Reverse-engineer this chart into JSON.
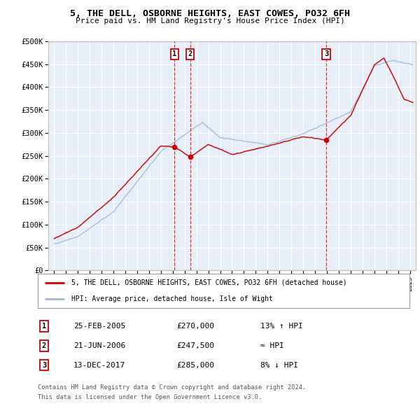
{
  "title": "5, THE DELL, OSBORNE HEIGHTS, EAST COWES, PO32 6FH",
  "subtitle": "Price paid vs. HM Land Registry's House Price Index (HPI)",
  "ylabel_ticks": [
    "£0",
    "£50K",
    "£100K",
    "£150K",
    "£200K",
    "£250K",
    "£300K",
    "£350K",
    "£400K",
    "£450K",
    "£500K"
  ],
  "ytick_values": [
    0,
    50000,
    100000,
    150000,
    200000,
    250000,
    300000,
    350000,
    400000,
    450000,
    500000
  ],
  "xlim": [
    1994.5,
    2025.5
  ],
  "ylim": [
    0,
    500000
  ],
  "sale_markers": [
    {
      "num": 1,
      "date_str": "25-FEB-2005",
      "price": 270000,
      "x": 2005.15,
      "label": "13% ↑ HPI"
    },
    {
      "num": 2,
      "date_str": "21-JUN-2006",
      "price": 247500,
      "x": 2006.47,
      "label": "≈ HPI"
    },
    {
      "num": 3,
      "date_str": "13-DEC-2017",
      "price": 285000,
      "x": 2017.95,
      "label": "8% ↓ HPI"
    }
  ],
  "legend_label_red": "5, THE DELL, OSBORNE HEIGHTS, EAST COWES, PO32 6FH (detached house)",
  "legend_label_blue": "HPI: Average price, detached house, Isle of Wight",
  "footer_line1": "Contains HM Land Registry data © Crown copyright and database right 2024.",
  "footer_line2": "This data is licensed under the Open Government Licence v3.0.",
  "red_color": "#cc0000",
  "blue_color": "#99bbdd",
  "background_color": "#e8eef8"
}
